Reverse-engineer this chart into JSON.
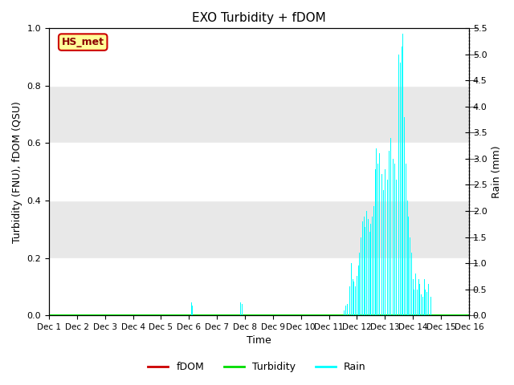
{
  "title": "EXO Turbidity + fDOM",
  "xlabel": "Time",
  "ylabel_left": "Turbidity (FNU), fDOM (QSU)",
  "ylabel_right": "Rain (mm)",
  "ylim_left": [
    0.0,
    1.0
  ],
  "ylim_right": [
    0.0,
    5.5
  ],
  "yticks_left": [
    0.0,
    0.2,
    0.4,
    0.6,
    0.8,
    1.0
  ],
  "yticks_right": [
    0.0,
    0.5,
    1.0,
    1.5,
    2.0,
    2.5,
    3.0,
    3.5,
    4.0,
    4.5,
    5.0,
    5.5
  ],
  "fig_bg_color": "#ffffff",
  "plot_bg_color": "#ffffff",
  "band_color": "#e8e8e8",
  "annotation_box": {
    "text": "HS_met",
    "facecolor": "#ffff99",
    "edgecolor": "#cc0000",
    "textcolor": "#8b0000"
  },
  "legend_items": [
    {
      "label": "fDOM",
      "color": "#cc0000",
      "linestyle": "-"
    },
    {
      "label": "Turbidity",
      "color": "#00dd00",
      "linestyle": "-"
    },
    {
      "label": "Rain",
      "color": "#00ffff",
      "linestyle": "-"
    }
  ],
  "n_days": 16,
  "x_tick_labels": [
    "Dec 1",
    "Dec 2",
    "Dec 3",
    "Dec 4",
    "Dec 5",
    "Dec 6",
    "Dec 7",
    "Dec 8",
    "Dec 9",
    "Dec 10",
    "Dec 11",
    "Dec 12",
    "Dec 13",
    "Dec 14",
    "Dec 15",
    "Dec 16"
  ],
  "rain_data": {
    "times": [
      6.08,
      6.1,
      6.12,
      7.85,
      7.9,
      11.55,
      11.6,
      11.65,
      11.7,
      11.75,
      11.8,
      11.85,
      11.9,
      11.95,
      12.0,
      12.05,
      12.1,
      12.15,
      12.2,
      12.25,
      12.3,
      12.35,
      12.4,
      12.45,
      12.5,
      12.55,
      12.6,
      12.65,
      12.7,
      12.75,
      12.8,
      12.85,
      12.9,
      12.95,
      13.0,
      13.05,
      13.1,
      13.15,
      13.2,
      13.25,
      13.3,
      13.35,
      13.4,
      13.45,
      13.5,
      13.55,
      13.6,
      13.65,
      13.7,
      13.75,
      13.8,
      13.85,
      13.9,
      13.95,
      14.0,
      14.05,
      14.1,
      14.15,
      14.2,
      14.25,
      14.3,
      14.35,
      14.4,
      14.45,
      14.5,
      14.55,
      14.6,
      14.65
    ],
    "values": [
      0.25,
      0.22,
      0.18,
      0.25,
      0.22,
      0.1,
      0.18,
      0.22,
      0.6,
      0.55,
      1.0,
      0.7,
      0.65,
      0.55,
      0.75,
      0.95,
      1.2,
      1.5,
      1.8,
      1.9,
      1.7,
      2.0,
      1.85,
      1.6,
      1.75,
      1.9,
      2.1,
      2.8,
      3.2,
      2.9,
      3.1,
      2.5,
      2.7,
      2.4,
      2.8,
      3.3,
      2.6,
      3.15,
      3.4,
      2.7,
      3.0,
      2.9,
      2.6,
      4.9,
      5.0,
      4.85,
      5.15,
      5.4,
      3.8,
      2.9,
      2.2,
      1.9,
      1.5,
      1.2,
      0.7,
      0.5,
      0.8,
      0.5,
      0.7,
      0.6,
      0.4,
      0.35,
      0.7,
      0.5,
      0.45,
      0.6,
      0.5,
      0.35
    ]
  },
  "fdom_data": {
    "times": [
      1.0,
      16.0
    ],
    "values": [
      0.0,
      0.0
    ]
  },
  "turbidity_data": {
    "times": [
      1.0,
      16.0
    ],
    "values": [
      0.0,
      0.0
    ]
  },
  "band_ranges": [
    [
      0.2,
      0.4
    ],
    [
      0.6,
      0.8
    ],
    [
      1.0,
      1.0
    ]
  ],
  "xlim": [
    1,
    16
  ]
}
